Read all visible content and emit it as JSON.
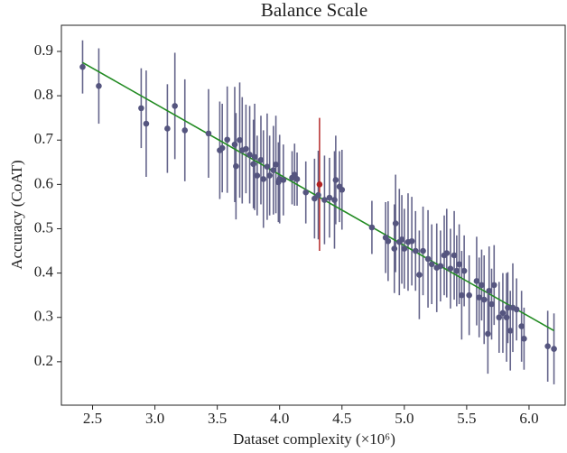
{
  "chart_data": {
    "type": "scatter",
    "title": "Balance Scale",
    "x_label": "Dataset complexity (×10⁶)",
    "y_label": "Accuracy (CoAT)",
    "xlim": [
      2.25,
      6.29
    ],
    "ylim": [
      0.102,
      0.959
    ],
    "xticks": [
      2.5,
      {
        "value": 3,
        "label": "3.0"
      },
      3.5,
      {
        "value": 4,
        "label": "4.0"
      },
      4.5,
      {
        "value": 5,
        "label": "5.0"
      },
      5.5,
      {
        "value": 6,
        "label": "6.0"
      }
    ],
    "yticks": [
      0.2,
      0.3,
      0.4,
      0.5,
      0.6,
      0.7,
      0.8,
      0.9
    ],
    "series": [
      {
        "color": "#55557f",
        "x": [
          2.42,
          2.55,
          2.89,
          2.93,
          3.1,
          3.16,
          3.24,
          3.43,
          3.52,
          3.54,
          3.58,
          3.64,
          3.65,
          3.68,
          3.7,
          3.73,
          3.76,
          3.79,
          3.8,
          3.82,
          3.85,
          3.87,
          3.9,
          3.92,
          3.95,
          3.97,
          3.99,
          4.0,
          4.03,
          4.1,
          4.12,
          4.14,
          4.21,
          4.28,
          4.31,
          4.36,
          4.4,
          4.44,
          4.45,
          4.48,
          4.5,
          4.74,
          4.85,
          4.87,
          4.92,
          4.93,
          4.96,
          4.98,
          5.0,
          5.03,
          5.06,
          5.09,
          5.12,
          5.15,
          5.19,
          5.22,
          5.26,
          5.29,
          5.32,
          5.34,
          5.37,
          5.4,
          5.42,
          5.44,
          5.46,
          5.48,
          5.52,
          5.58,
          5.6,
          5.62,
          5.64,
          5.67,
          5.68,
          5.7,
          5.72,
          5.76,
          5.79,
          5.82,
          5.83,
          5.85,
          5.87,
          5.9,
          5.94,
          5.96,
          6.15,
          6.2
        ],
        "values": [
          0.865,
          0.822,
          0.772,
          0.737,
          0.726,
          0.777,
          0.722,
          0.715,
          0.677,
          0.682,
          0.701,
          0.69,
          0.641,
          0.7,
          0.677,
          0.68,
          0.667,
          0.646,
          0.662,
          0.62,
          0.655,
          0.612,
          0.64,
          0.62,
          0.632,
          0.645,
          0.605,
          0.612,
          0.61,
          0.615,
          0.622,
          0.612,
          0.582,
          0.568,
          0.576,
          0.565,
          0.57,
          0.565,
          0.61,
          0.595,
          0.588,
          0.503,
          0.48,
          0.472,
          0.455,
          0.512,
          0.47,
          0.476,
          0.455,
          0.47,
          0.472,
          0.45,
          0.396,
          0.45,
          0.432,
          0.42,
          0.412,
          0.416,
          0.44,
          0.445,
          0.41,
          0.44,
          0.405,
          0.42,
          0.35,
          0.405,
          0.35,
          0.382,
          0.345,
          0.373,
          0.34,
          0.263,
          0.36,
          0.33,
          0.373,
          0.3,
          0.31,
          0.3,
          0.322,
          0.27,
          0.322,
          0.318,
          0.28,
          0.252,
          0.235,
          0.229
        ],
        "errors": [
          0.06,
          0.085,
          0.09,
          0.12,
          0.1,
          0.12,
          0.115,
          0.1,
          0.11,
          0.1,
          0.12,
          0.13,
          0.12,
          0.13,
          0.12,
          0.1,
          0.11,
          0.1,
          0.12,
          0.09,
          0.1,
          0.11,
          0.12,
          0.09,
          0.1,
          0.11,
          0.09,
          0.1,
          0.08,
          0.06,
          0.07,
          0.06,
          0.07,
          0.09,
          0.1,
          0.1,
          0.09,
          0.11,
          0.1,
          0.08,
          0.09,
          0.06,
          0.08,
          0.09,
          0.1,
          0.11,
          0.12,
          0.1,
          0.09,
          0.11,
          0.1,
          0.09,
          0.1,
          0.1,
          0.11,
          0.09,
          0.1,
          0.08,
          0.09,
          0.1,
          0.09,
          0.1,
          0.08,
          0.09,
          0.1,
          0.08,
          0.09,
          0.1,
          0.09,
          0.08,
          0.1,
          0.09,
          0.1,
          0.08,
          0.09,
          0.08,
          0.09,
          0.1,
          0.08,
          0.09,
          0.1,
          0.07,
          0.08,
          0.07,
          0.08,
          0.08
        ]
      },
      {
        "color": "#b22222",
        "x": [
          4.32
        ],
        "values": [
          0.6
        ],
        "errors": [
          0.15
        ]
      }
    ],
    "trend": {
      "color": "#228b22",
      "x": [
        2.42,
        6.2
      ],
      "values": [
        0.875,
        0.27
      ]
    }
  }
}
